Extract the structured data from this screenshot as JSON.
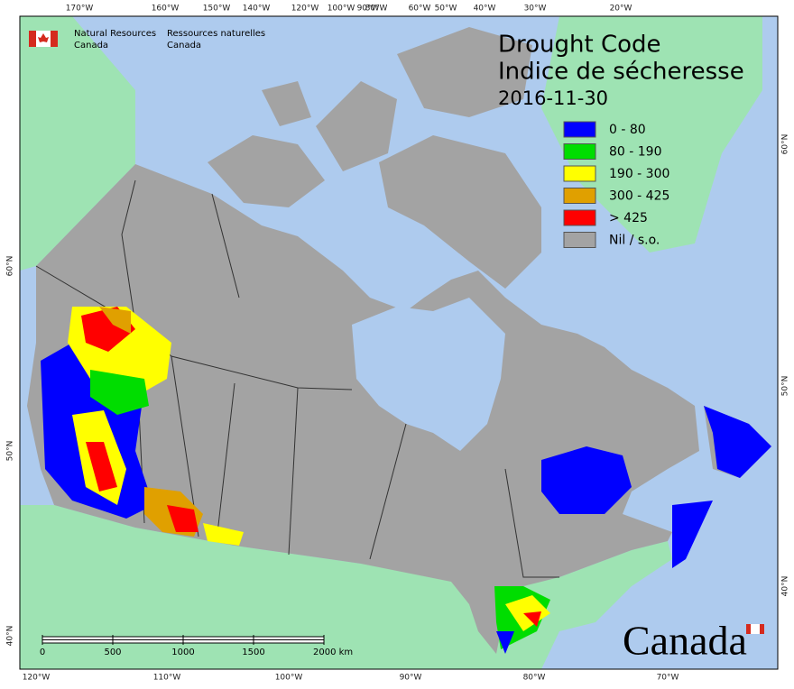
{
  "header": {
    "title": "Drought Code",
    "title_fr": "Indice de sécheresse",
    "date": "2016-11-30"
  },
  "agency": {
    "en_1": "Natural Resources",
    "en_2": "Canada",
    "fr_1": "Ressources naturelles",
    "fr_2": "Canada"
  },
  "legend": [
    {
      "label": "0 - 80",
      "color": "#0000ff"
    },
    {
      "label": "80 - 190",
      "color": "#00dd00"
    },
    {
      "label": "190 - 300",
      "color": "#ffff00"
    },
    {
      "label": "300 - 425",
      "color": "#e0a000"
    },
    {
      "label": "> 425",
      "color": "#ff0000"
    },
    {
      "label": "Nil / s.o.",
      "color": "#a3a3a3"
    }
  ],
  "graticule": {
    "top": [
      "170°W",
      "160°W",
      "150°W",
      "140°W",
      "120°W",
      "100°W",
      "90°W",
      "80°W",
      "60°W",
      "50°W",
      "40°W",
      "30°W",
      "20°W"
    ],
    "bottom": [
      "120°W",
      "110°W",
      "100°W",
      "90°W",
      "80°W",
      "70°W"
    ],
    "left": [
      "60°N",
      "50°N",
      "40°N"
    ],
    "right": [
      "60°N",
      "50°N",
      "40°N"
    ]
  },
  "scale": [
    "0",
    "500",
    "1000",
    "1500",
    "2000 km"
  ],
  "wordmark": "Canada"
}
